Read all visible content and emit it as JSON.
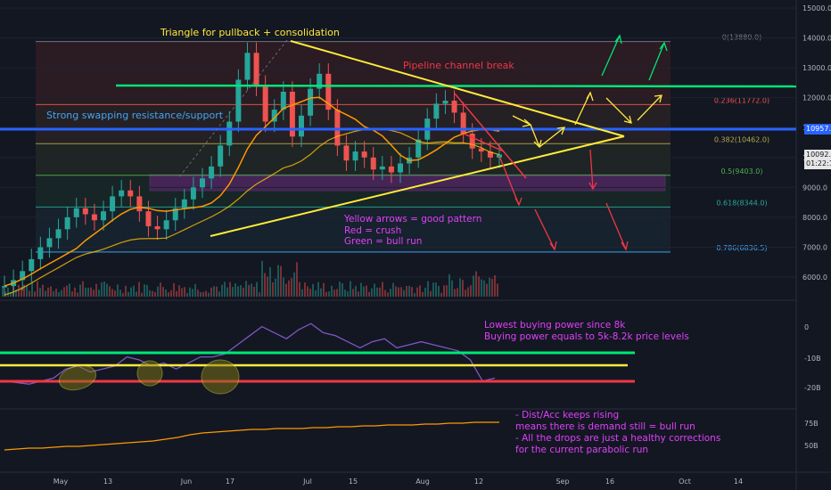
{
  "chart_data": {
    "type": "line",
    "asset": "BTC",
    "price_axis": {
      "ticks": [
        "15000.0",
        "14000.0",
        "13000.0",
        "12000.0",
        "11000.0",
        "10000.0",
        "9000.0",
        "8000.0",
        "7000.0",
        "6000.0"
      ],
      "range": [
        5300,
        15100
      ]
    },
    "price_tags": [
      {
        "label": "10957.5",
        "value": 10957.5,
        "color": "#2962ff"
      },
      {
        "label": "10092.5",
        "value": 10092.5,
        "color": "#e6e6e6"
      },
      {
        "label": "01:22:17",
        "value": 9770,
        "color": "#e6e6e6"
      }
    ],
    "fib_levels": [
      {
        "label": "0(13880.0)",
        "value": 13880,
        "color": "#787b86"
      },
      {
        "label": "0.236(11772.0)",
        "value": 11772,
        "color": "#ef5350"
      },
      {
        "label": "0.382(10462.0)",
        "value": 10462,
        "color": "#b2a84a"
      },
      {
        "label": "0.5(9403.0)",
        "value": 9403,
        "color": "#4caf50"
      },
      {
        "label": "0.618(8344.0)",
        "value": 8344,
        "color": "#26a69a"
      },
      {
        "label": "0.786(6836.5)",
        "value": 6836.5,
        "color": "#42a5f5"
      }
    ],
    "indicator_axis": {
      "ticks": [
        "0",
        "-10B",
        "-20B"
      ]
    },
    "dist_axis": {
      "ticks": [
        "75B",
        "50B"
      ]
    },
    "time_axis": {
      "ticks": [
        "May",
        "13",
        "Jun",
        "17",
        "Jul",
        "15",
        "Aug",
        "12",
        "Sep",
        "16",
        "Oct",
        "14"
      ]
    },
    "price_series": [
      5700,
      5900,
      6200,
      6600,
      7000,
      7300,
      7600,
      8000,
      8300,
      8100,
      7900,
      8200,
      8700,
      8900,
      8700,
      8200,
      7700,
      7600,
      7900,
      8300,
      8600,
      9000,
      9300,
      9700,
      10400,
      11200,
      12600,
      13500,
      12400,
      11200,
      11600,
      12200,
      10700,
      11400,
      12300,
      12800,
      11600,
      10400,
      9900,
      10200,
      10000,
      9600,
      9700,
      9500,
      9800,
      10000,
      10600,
      11300,
      11800,
      11900,
      11500,
      10800,
      10300,
      10200,
      10000,
      10100
    ],
    "indicator_series": [
      -17,
      -17.5,
      -18,
      -17,
      -16,
      -13,
      -12,
      -14,
      -13,
      -12,
      -9,
      -10,
      -12,
      -11,
      -13,
      -11,
      -9,
      -9,
      -8,
      -5,
      -2,
      1,
      -1,
      -3,
      0,
      2,
      -1,
      -2,
      -4,
      -6,
      -4,
      -3,
      -6,
      -5,
      -4,
      -5,
      -6,
      -7,
      -10,
      -17,
      -16
    ],
    "dist_acc_series": [
      48,
      49,
      50,
      50,
      51,
      52,
      52,
      53,
      54,
      55,
      56,
      57,
      58,
      60,
      62,
      65,
      67,
      68,
      69,
      70,
      71,
      71,
      72,
      72,
      72,
      73,
      73,
      74,
      74,
      75,
      75,
      76,
      76,
      76,
      77,
      77,
      78,
      78,
      79,
      79,
      79
    ]
  },
  "annotations": {
    "triangle": "Triangle for pullback + consolidation",
    "pipeline": "Pipeline channel break",
    "swapping": "Strong swapping resistance/support",
    "legend": "Yellow arrows = good pattern\nRed = crush\nGreen = bull run",
    "buying_power": "Lowest buying power since 8k\nBuying power equals to 5k-8.2k price levels",
    "dist_acc": "- Dist/Acc keeps rising\nmeans there is demand still = bull run\n- All the drops are just a healthy corrections\nfor the current parabolic run"
  },
  "colors": {
    "background": "#131722",
    "yellow": "#ffeb3b",
    "green": "#00e676",
    "red": "#f23645",
    "blue": "#2962ff",
    "magenta_text": "#e040fb",
    "indicator": "#7e57c2",
    "dist_acc": "#ff9800"
  }
}
